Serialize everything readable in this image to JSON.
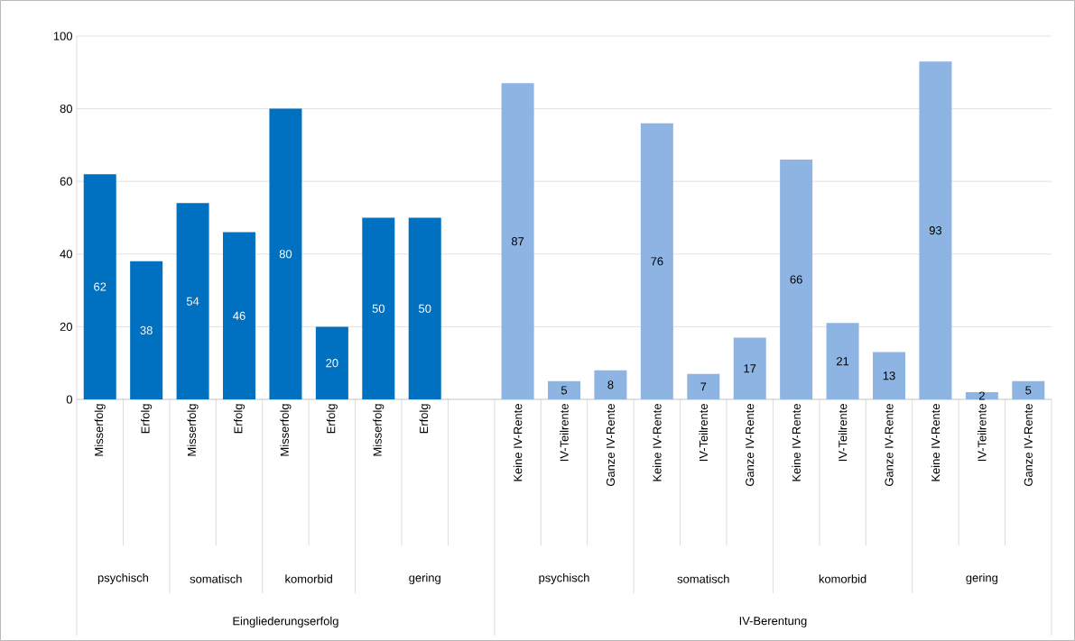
{
  "chart_data": {
    "type": "bar",
    "categories": [
      "Misserfolg",
      "Erfolg",
      "Misserfolg",
      "Erfolg",
      "Misserfolg",
      "Erfolg",
      "Misserfolg",
      "Erfolg",
      null,
      "Keine IV-Rente",
      "IV-Teilrente",
      "Ganze IV-Rente",
      "Keine IV-Rente",
      "IV-Teilrente",
      "Ganze IV-Rente",
      "Keine IV-Rente",
      "IV-Teilrente",
      "Ganze IV-Rente",
      "Keine IV-Rente",
      "IV-Teilrente",
      "Ganze IV-Rente"
    ],
    "values": [
      62,
      38,
      54,
      46,
      80,
      20,
      50,
      50,
      null,
      87,
      5,
      8,
      76,
      7,
      17,
      66,
      21,
      13,
      93,
      2,
      5
    ],
    "colors": [
      "#0070c0",
      "#0070c0",
      "#0070c0",
      "#0070c0",
      "#0070c0",
      "#0070c0",
      "#0070c0",
      "#0070c0",
      null,
      "#8db4e2",
      "#8db4e2",
      "#8db4e2",
      "#8db4e2",
      "#8db4e2",
      "#8db4e2",
      "#8db4e2",
      "#8db4e2",
      "#8db4e2",
      "#8db4e2",
      "#8db4e2",
      "#8db4e2"
    ],
    "data_labels": true,
    "ylim": [
      0,
      100
    ],
    "yticks": [
      0,
      20,
      40,
      60,
      80,
      100
    ],
    "grid": "y",
    "annotations": [
      "psychisch",
      "somatisch",
      "komorbid",
      "gering",
      "psychisch",
      "somatisch",
      "komorbid",
      "gering",
      "Eingliederungserfolg",
      "IV-Berentung"
    ]
  }
}
